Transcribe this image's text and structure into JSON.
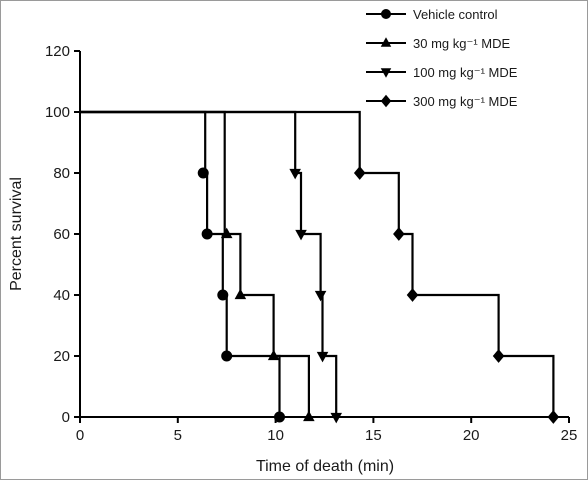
{
  "chart_data": {
    "type": "line",
    "title": "",
    "xlabel": "Time of death (min)",
    "ylabel": "Percent survival",
    "xlim": [
      0,
      25
    ],
    "ylim": [
      0,
      120
    ],
    "x_ticks": [
      0,
      5,
      10,
      15,
      20,
      25
    ],
    "y_ticks": [
      0,
      20,
      40,
      60,
      80,
      100,
      120
    ],
    "grid": false,
    "legend_position": "top-right",
    "line_color": "#000000",
    "series": [
      {
        "name": "Vehicle control",
        "marker": "circle",
        "step_points": [
          [
            0,
            100
          ],
          [
            6.4,
            100
          ],
          [
            6.4,
            80
          ],
          [
            6.5,
            80
          ],
          [
            6.5,
            60
          ],
          [
            7.3,
            60
          ],
          [
            7.3,
            40
          ],
          [
            7.5,
            40
          ],
          [
            7.5,
            20
          ],
          [
            10.2,
            20
          ],
          [
            10.2,
            0
          ]
        ],
        "markers": [
          [
            6.3,
            80
          ],
          [
            6.5,
            60
          ],
          [
            7.3,
            40
          ],
          [
            7.5,
            20
          ],
          [
            10.2,
            0
          ]
        ]
      },
      {
        "name": "30 mg kg⁻¹ MDE",
        "marker": "triangle-up",
        "step_points": [
          [
            0,
            100
          ],
          [
            7.4,
            100
          ],
          [
            7.4,
            60
          ],
          [
            8.2,
            60
          ],
          [
            8.2,
            40
          ],
          [
            9.9,
            40
          ],
          [
            9.9,
            20
          ],
          [
            11.7,
            20
          ],
          [
            11.7,
            0
          ]
        ],
        "markers": [
          [
            7.5,
            60
          ],
          [
            8.2,
            40
          ],
          [
            9.9,
            20
          ],
          [
            11.7,
            0
          ]
        ]
      },
      {
        "name": "100 mg kg⁻¹ MDE",
        "marker": "triangle-down",
        "step_points": [
          [
            0,
            100
          ],
          [
            11.0,
            100
          ],
          [
            11.0,
            80
          ],
          [
            11.3,
            80
          ],
          [
            11.3,
            60
          ],
          [
            12.3,
            60
          ],
          [
            12.3,
            40
          ],
          [
            12.4,
            40
          ],
          [
            12.4,
            20
          ],
          [
            13.1,
            20
          ],
          [
            13.1,
            0
          ]
        ],
        "markers": [
          [
            11.0,
            80
          ],
          [
            11.3,
            60
          ],
          [
            12.3,
            40
          ],
          [
            12.4,
            20
          ],
          [
            13.1,
            0
          ]
        ]
      },
      {
        "name": "300 mg kg⁻¹ MDE",
        "marker": "diamond",
        "step_points": [
          [
            0,
            100
          ],
          [
            14.3,
            100
          ],
          [
            14.3,
            80
          ],
          [
            16.3,
            80
          ],
          [
            16.3,
            60
          ],
          [
            17.0,
            60
          ],
          [
            17.0,
            40
          ],
          [
            21.4,
            40
          ],
          [
            21.4,
            20
          ],
          [
            24.2,
            20
          ],
          [
            24.2,
            0
          ]
        ],
        "markers": [
          [
            14.3,
            80
          ],
          [
            16.3,
            60
          ],
          [
            17.0,
            40
          ],
          [
            21.4,
            20
          ],
          [
            24.2,
            0
          ]
        ]
      }
    ]
  }
}
